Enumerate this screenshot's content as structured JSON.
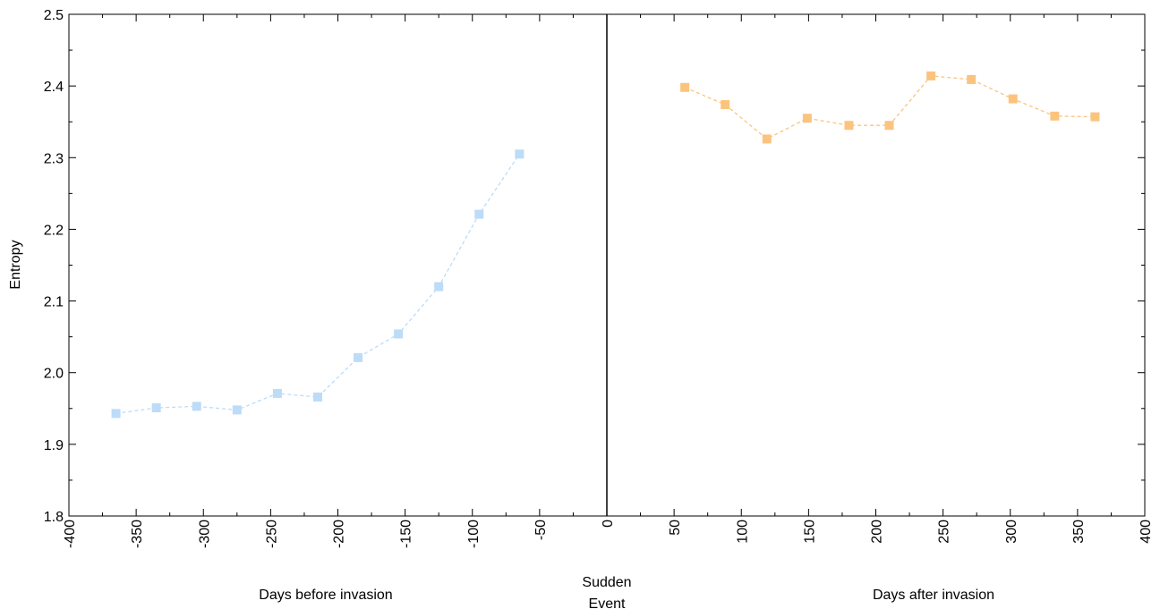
{
  "chart_data": {
    "type": "line",
    "ylabel": "Entropy",
    "xlabel_left": "Days before invasion",
    "xlabel_right": "Days after invasion",
    "event_label_line1": "Sudden",
    "event_label_line2": "Event",
    "xlim": [
      -400,
      400
    ],
    "ylim": [
      1.8,
      2.5
    ],
    "x_ticks": [
      -400,
      -350,
      -300,
      -250,
      -200,
      -150,
      -100,
      -50,
      0,
      50,
      100,
      150,
      200,
      250,
      300,
      350,
      400
    ],
    "x_tick_labels": [
      "-400",
      "-350",
      "-300",
      "-250",
      "-200",
      "-150",
      "-100",
      "-50",
      "0",
      "50",
      "100",
      "150",
      "200",
      "250",
      "300",
      "350",
      "400"
    ],
    "y_ticks": [
      1.8,
      1.9,
      2.0,
      2.1,
      2.2,
      2.3,
      2.4,
      2.5
    ],
    "y_tick_labels": [
      "1.8",
      "1.9",
      "2.0",
      "2.1",
      "2.2",
      "2.3",
      "2.4",
      "2.5"
    ],
    "event_line_x": 0,
    "grid": false,
    "series": [
      {
        "color": "#bcdcf7",
        "marker": "square",
        "line_style": "dashed",
        "x": [
          -365,
          -335,
          -305,
          -275,
          -245,
          -215,
          -185,
          -155,
          -125,
          -95,
          -65
        ],
        "y": [
          1.943,
          1.951,
          1.953,
          1.948,
          1.971,
          1.966,
          2.021,
          2.054,
          2.12,
          2.221,
          2.305
        ]
      },
      {
        "color": "#fbc47e",
        "marker": "square",
        "line_style": "dashed",
        "x": [
          58,
          88,
          119,
          149,
          180,
          210,
          241,
          271,
          302,
          333,
          363
        ],
        "y": [
          2.398,
          2.374,
          2.326,
          2.355,
          2.345,
          2.345,
          2.414,
          2.409,
          2.382,
          2.358,
          2.357
        ]
      }
    ]
  }
}
